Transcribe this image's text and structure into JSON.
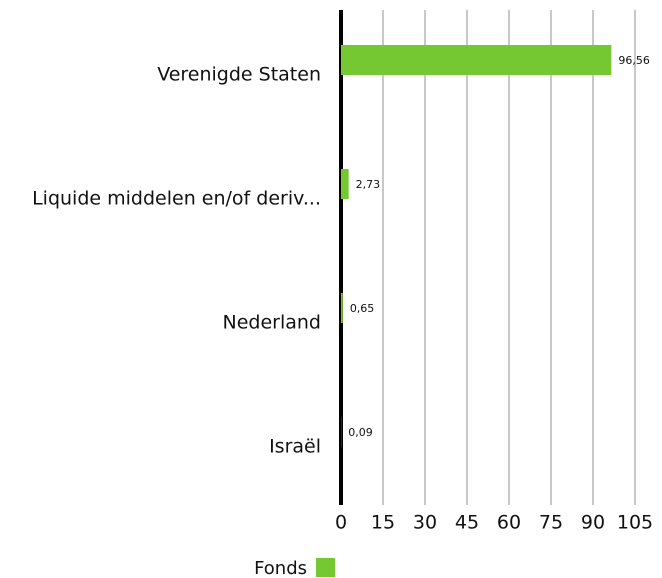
{
  "chart_data": {
    "type": "bar",
    "orientation": "horizontal",
    "categories": [
      "Verenigde Staten",
      "Liquide middelen en/of deriv...",
      "Nederland",
      "Israël"
    ],
    "series": [
      {
        "name": "Fonds",
        "color": "#76c832",
        "values": [
          96.56,
          2.73,
          0.65,
          0.09
        ],
        "value_labels": [
          "96,56",
          "2,73",
          "0,65",
          "0,09"
        ]
      }
    ],
    "xlim": [
      0,
      105
    ],
    "xticks": [
      0,
      15,
      30,
      45,
      60,
      75,
      90,
      105
    ],
    "grid": true
  }
}
